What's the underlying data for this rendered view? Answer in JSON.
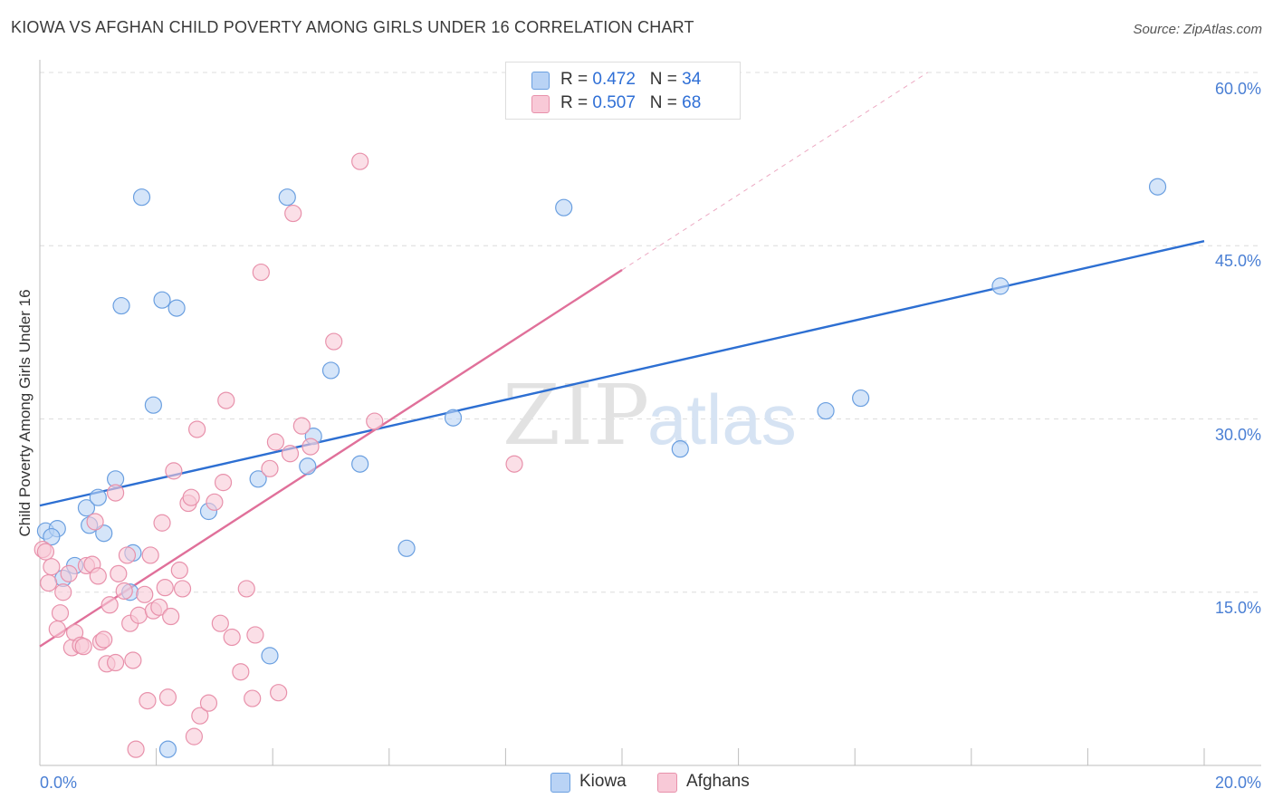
{
  "title": "KIOWA VS AFGHAN CHILD POVERTY AMONG GIRLS UNDER 16 CORRELATION CHART",
  "source": "Source: ZipAtlas.com",
  "watermark": {
    "zip": "ZIP",
    "atlas": "atlas"
  },
  "legend": {
    "kiowa": {
      "r_label": "R = ",
      "r_value": "0.472",
      "n_label": "N = ",
      "n_value": "34"
    },
    "afghans": {
      "r_label": "R = ",
      "r_value": "0.507",
      "n_label": "N = ",
      "n_value": "68"
    }
  },
  "chart_data": {
    "type": "scatter",
    "xlabel": "",
    "ylabel": "Child Poverty Among Girls Under 16",
    "xlim": [
      0,
      20
    ],
    "ylim": [
      0,
      60
    ],
    "x_tick_labels": [
      "0.0%",
      "20.0%"
    ],
    "y_ticks": [
      15,
      30,
      45,
      60
    ],
    "y_tick_labels": [
      "15.0%",
      "30.0%",
      "45.0%",
      "60.0%"
    ],
    "colors": {
      "kiowa": "#6a9fe0",
      "kiowa_fill": "#b9d3f5",
      "kiowa_line": "#2d6fd2",
      "afghans": "#e891ab",
      "afghans_fill": "#f8c9d7",
      "afghans_line": "#e0709a"
    },
    "series": [
      {
        "name": "Kiowa",
        "points": [
          [
            0.1,
            20.3
          ],
          [
            0.3,
            20.5
          ],
          [
            0.2,
            19.8
          ],
          [
            0.4,
            16.2
          ],
          [
            0.6,
            17.3
          ],
          [
            0.8,
            22.3
          ],
          [
            0.85,
            20.8
          ],
          [
            1.0,
            23.2
          ],
          [
            1.1,
            20.1
          ],
          [
            1.3,
            24.8
          ],
          [
            1.4,
            39.8
          ],
          [
            1.6,
            18.4
          ],
          [
            1.55,
            15.0
          ],
          [
            1.75,
            49.2
          ],
          [
            1.95,
            31.2
          ],
          [
            2.1,
            40.3
          ],
          [
            2.35,
            39.6
          ],
          [
            2.2,
            1.4
          ],
          [
            2.9,
            22.0
          ],
          [
            3.75,
            24.8
          ],
          [
            3.95,
            9.5
          ],
          [
            4.25,
            49.2
          ],
          [
            4.6,
            25.9
          ],
          [
            4.7,
            28.5
          ],
          [
            5.0,
            34.2
          ],
          [
            5.5,
            26.1
          ],
          [
            6.3,
            18.8
          ],
          [
            7.1,
            30.1
          ],
          [
            9.0,
            48.3
          ],
          [
            11.0,
            27.4
          ],
          [
            13.5,
            30.7
          ],
          [
            14.1,
            31.8
          ],
          [
            16.5,
            41.5
          ],
          [
            19.2,
            50.1
          ]
        ]
      },
      {
        "name": "Afghans",
        "points": [
          [
            0.05,
            18.7
          ],
          [
            0.1,
            18.5
          ],
          [
            0.15,
            15.8
          ],
          [
            0.2,
            17.2
          ],
          [
            0.3,
            11.8
          ],
          [
            0.35,
            13.2
          ],
          [
            0.4,
            15.0
          ],
          [
            0.5,
            16.6
          ],
          [
            0.55,
            10.2
          ],
          [
            0.6,
            11.5
          ],
          [
            0.7,
            10.4
          ],
          [
            0.75,
            10.3
          ],
          [
            0.8,
            17.3
          ],
          [
            0.9,
            17.4
          ],
          [
            0.95,
            21.1
          ],
          [
            1.0,
            16.4
          ],
          [
            1.05,
            10.7
          ],
          [
            1.1,
            10.9
          ],
          [
            1.15,
            8.8
          ],
          [
            1.2,
            13.9
          ],
          [
            1.3,
            8.9
          ],
          [
            1.3,
            23.6
          ],
          [
            1.35,
            16.6
          ],
          [
            1.45,
            15.1
          ],
          [
            1.5,
            18.2
          ],
          [
            1.55,
            12.3
          ],
          [
            1.6,
            9.1
          ],
          [
            1.7,
            13.0
          ],
          [
            1.8,
            14.8
          ],
          [
            1.85,
            5.6
          ],
          [
            1.9,
            18.2
          ],
          [
            1.95,
            13.4
          ],
          [
            2.05,
            13.7
          ],
          [
            2.1,
            21.0
          ],
          [
            2.15,
            15.4
          ],
          [
            2.2,
            5.9
          ],
          [
            2.25,
            12.9
          ],
          [
            2.3,
            25.5
          ],
          [
            2.4,
            16.9
          ],
          [
            2.45,
            15.3
          ],
          [
            2.55,
            22.7
          ],
          [
            2.6,
            23.2
          ],
          [
            2.65,
            2.5
          ],
          [
            2.7,
            29.1
          ],
          [
            2.75,
            4.3
          ],
          [
            2.9,
            5.4
          ],
          [
            3.0,
            22.8
          ],
          [
            3.1,
            12.3
          ],
          [
            3.15,
            24.5
          ],
          [
            3.2,
            31.6
          ],
          [
            3.3,
            11.1
          ],
          [
            3.45,
            8.1
          ],
          [
            3.55,
            15.3
          ],
          [
            3.65,
            5.8
          ],
          [
            3.7,
            11.3
          ],
          [
            3.8,
            42.7
          ],
          [
            3.95,
            25.7
          ],
          [
            4.05,
            28.0
          ],
          [
            4.1,
            6.3
          ],
          [
            4.3,
            27.0
          ],
          [
            4.35,
            47.8
          ],
          [
            4.5,
            29.4
          ],
          [
            4.65,
            27.6
          ],
          [
            5.05,
            36.7
          ],
          [
            5.5,
            52.3
          ],
          [
            5.75,
            29.8
          ],
          [
            8.15,
            26.1
          ],
          [
            1.65,
            1.4
          ]
        ]
      }
    ],
    "trendlines": [
      {
        "series": "Kiowa",
        "x": [
          0,
          20
        ],
        "y": [
          22.5,
          45.4
        ]
      },
      {
        "series": "Afghans",
        "x": [
          0,
          10
        ],
        "y": [
          10.3,
          42.9
        ]
      },
      {
        "series": "Afghans-extrapolated",
        "x": [
          10,
          15.25
        ],
        "y": [
          42.9,
          60.0
        ]
      }
    ]
  },
  "bottom_legend": {
    "kiowa": "Kiowa",
    "afghans": "Afghans"
  }
}
